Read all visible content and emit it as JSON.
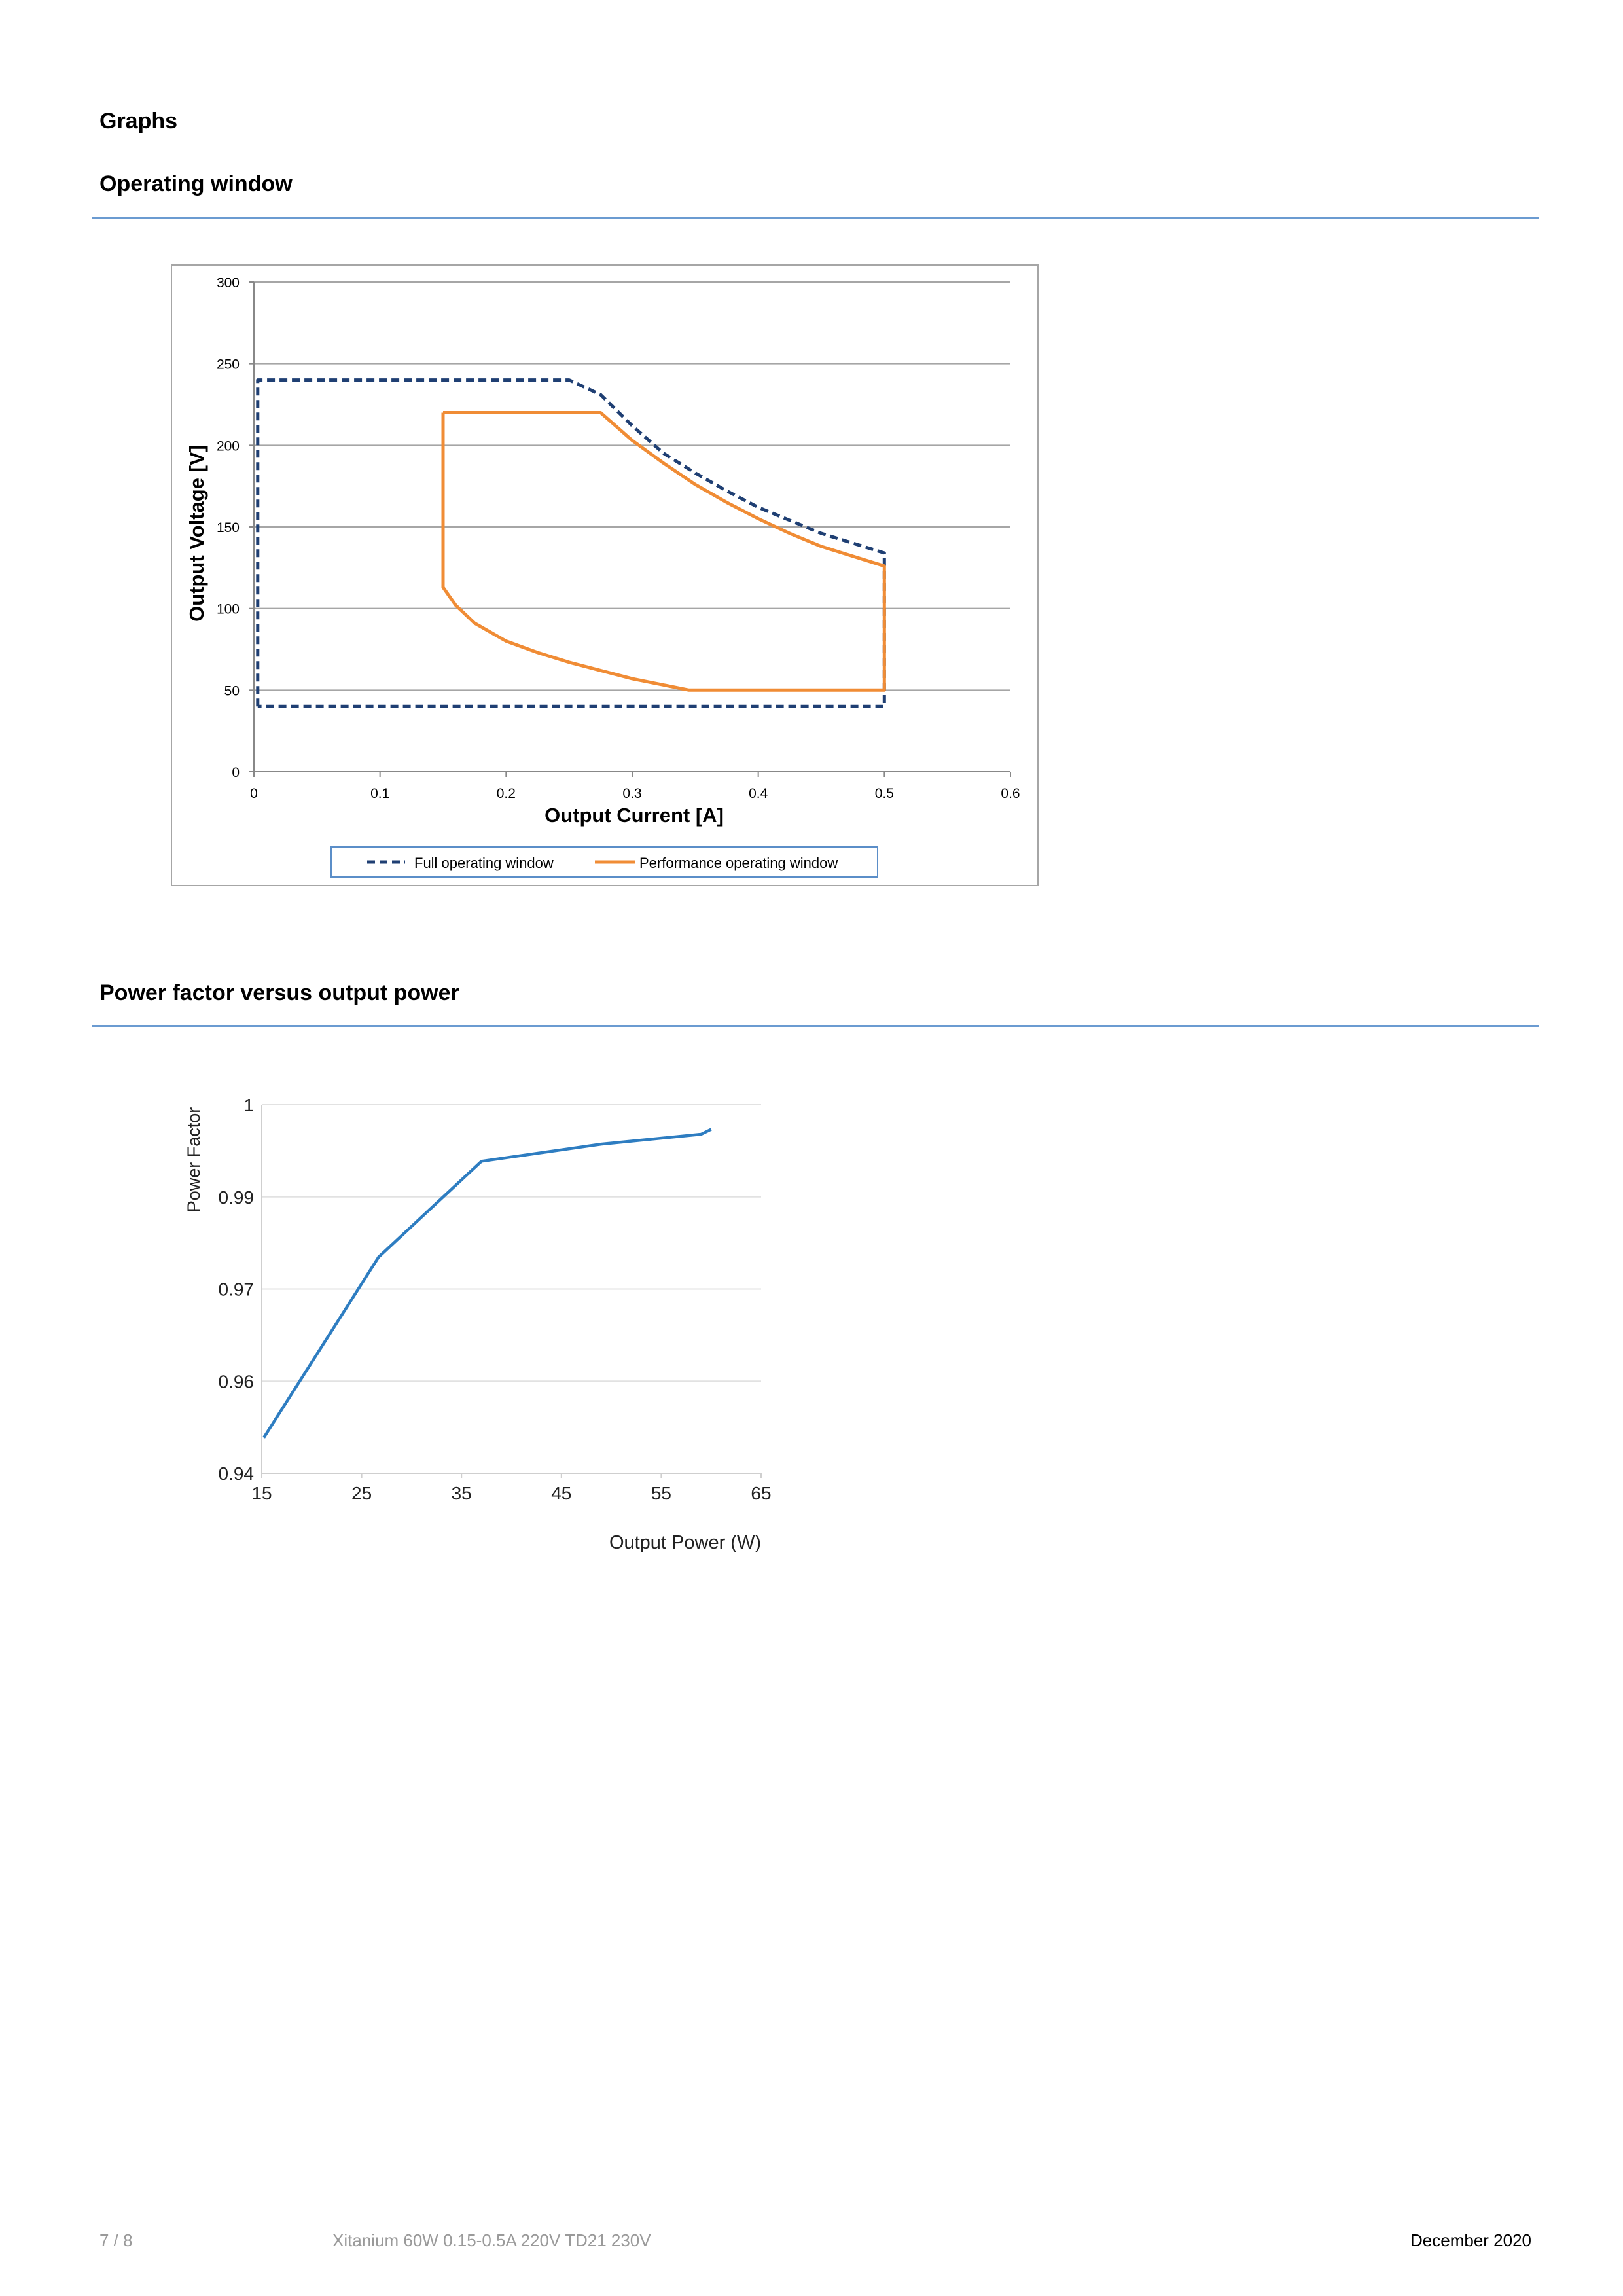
{
  "page": {
    "section_title": "Graphs",
    "subsection_1": "Operating window",
    "subsection_2": "Power factor versus output power"
  },
  "footer": {
    "page_number": "7 / 8",
    "product": "Xitanium 60W 0.15-0.5A 220V TD21 230V",
    "date": "December 2020"
  },
  "chart_data": [
    {
      "type": "line",
      "xlabel": "Output Current [A]",
      "ylabel": "Output Voltage [V]",
      "xlim": [
        0,
        0.6
      ],
      "ylim": [
        0,
        300
      ],
      "x_ticks": [
        0,
        0.1,
        0.2,
        0.3,
        0.4,
        0.5,
        0.6
      ],
      "y_ticks": [
        0,
        50,
        100,
        150,
        200,
        250,
        300
      ],
      "x_tick_labels": [
        "0",
        "0.1",
        "0.2",
        "0.3",
        "0.4",
        "0.5",
        "0.6"
      ],
      "y_tick_labels": [
        "0",
        "50",
        "100",
        "150",
        "200",
        "250",
        "300"
      ],
      "grid": "horizontal",
      "legend": "bottom",
      "series": [
        {
          "name": "Full operating window",
          "color": "#1f3f73",
          "style": "dashed",
          "points": [
            [
              0.003,
              40
            ],
            [
              0.003,
              240
            ],
            [
              0.25,
              240
            ],
            [
              0.275,
              231
            ],
            [
              0.3,
              212
            ],
            [
              0.325,
              195
            ],
            [
              0.35,
              183
            ],
            [
              0.375,
              172
            ],
            [
              0.4,
              162
            ],
            [
              0.425,
              154
            ],
            [
              0.45,
              146
            ],
            [
              0.475,
              140
            ],
            [
              0.5,
              134
            ],
            [
              0.5,
              128
            ],
            [
              0.5,
              40
            ],
            [
              0.003,
              40
            ]
          ]
        },
        {
          "name": "Performance operating window",
          "color": "#f08c35",
          "style": "solid",
          "points": [
            [
              0.15,
              220
            ],
            [
              0.275,
              220
            ],
            [
              0.3,
              203
            ],
            [
              0.325,
              189
            ],
            [
              0.35,
              176
            ],
            [
              0.375,
              165
            ],
            [
              0.4,
              155
            ],
            [
              0.425,
              146
            ],
            [
              0.45,
              138
            ],
            [
              0.475,
              132
            ],
            [
              0.5,
              126
            ],
            [
              0.5,
              120
            ],
            [
              0.5,
              50
            ],
            [
              0.345,
              50
            ],
            [
              0.3,
              57
            ],
            [
              0.275,
              62
            ],
            [
              0.25,
              67
            ],
            [
              0.225,
              73
            ],
            [
              0.2,
              80
            ],
            [
              0.175,
              91
            ],
            [
              0.16,
              102
            ],
            [
              0.15,
              113
            ],
            [
              0.15,
              220
            ]
          ]
        }
      ]
    },
    {
      "type": "line",
      "xlabel": "Output Power (W)",
      "ylabel": "Power Factor",
      "xlim": [
        15,
        65
      ],
      "ylim": [
        0.94,
        1
      ],
      "x_ticks": [
        15,
        25,
        35,
        45,
        55,
        65
      ],
      "x_tick_labels": [
        "15",
        "25",
        "35",
        "45",
        "55",
        "65"
      ],
      "y_tick_labels": [
        "0.94",
        "0.96",
        "0.97",
        "0.99",
        "1"
      ],
      "grid": "horizontal",
      "series": [
        {
          "color": "#2e7dc1",
          "style": "solid",
          "points": [
            [
              15.2,
              0.9458
            ],
            [
              26.7,
              0.9752
            ],
            [
              37,
              0.9908
            ],
            [
              49,
              0.9936
            ],
            [
              59,
              0.9952
            ],
            [
              60,
              0.996
            ]
          ]
        }
      ]
    }
  ]
}
